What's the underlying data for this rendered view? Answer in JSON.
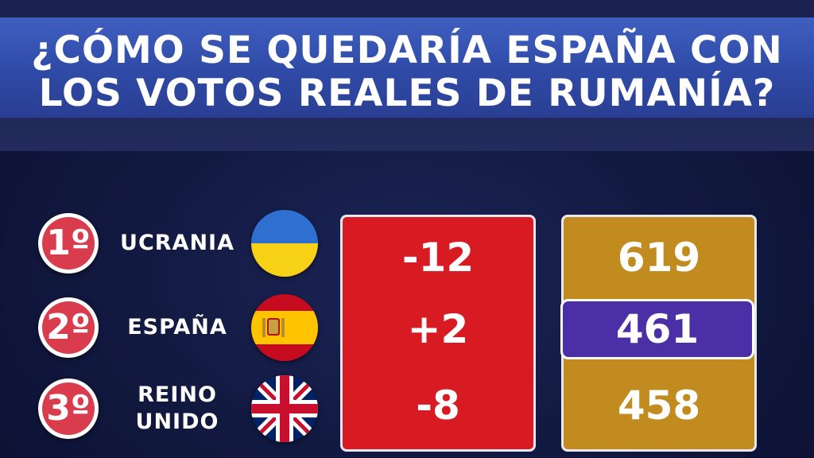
{
  "title": {
    "line1": "¿CÓMO SE QUEDARÍA ESPAÑA CON",
    "line2": "LOS VOTOS REALES DE RUMANÍA?"
  },
  "rows": [
    {
      "rank": "1º",
      "country_lines": [
        "UCRANIA"
      ],
      "flag": "ukraine-flag-icon",
      "change": "-12",
      "points": "619",
      "highlight": false
    },
    {
      "rank": "2º",
      "country_lines": [
        "ESPAÑA"
      ],
      "flag": "spain-flag-icon",
      "change": "+2",
      "points": "461",
      "highlight": true
    },
    {
      "rank": "3º",
      "country_lines": [
        "REINO",
        "UNIDO"
      ],
      "flag": "united-kingdom-flag-icon",
      "change": "-8",
      "points": "458",
      "highlight": false
    }
  ],
  "colors": {
    "title_bar": "#2f4aa6",
    "rank_badge": "#d93c4c",
    "change_panel": "#d81b23",
    "points_panel": "#c28b1f",
    "highlight": "#4a2fa6"
  }
}
